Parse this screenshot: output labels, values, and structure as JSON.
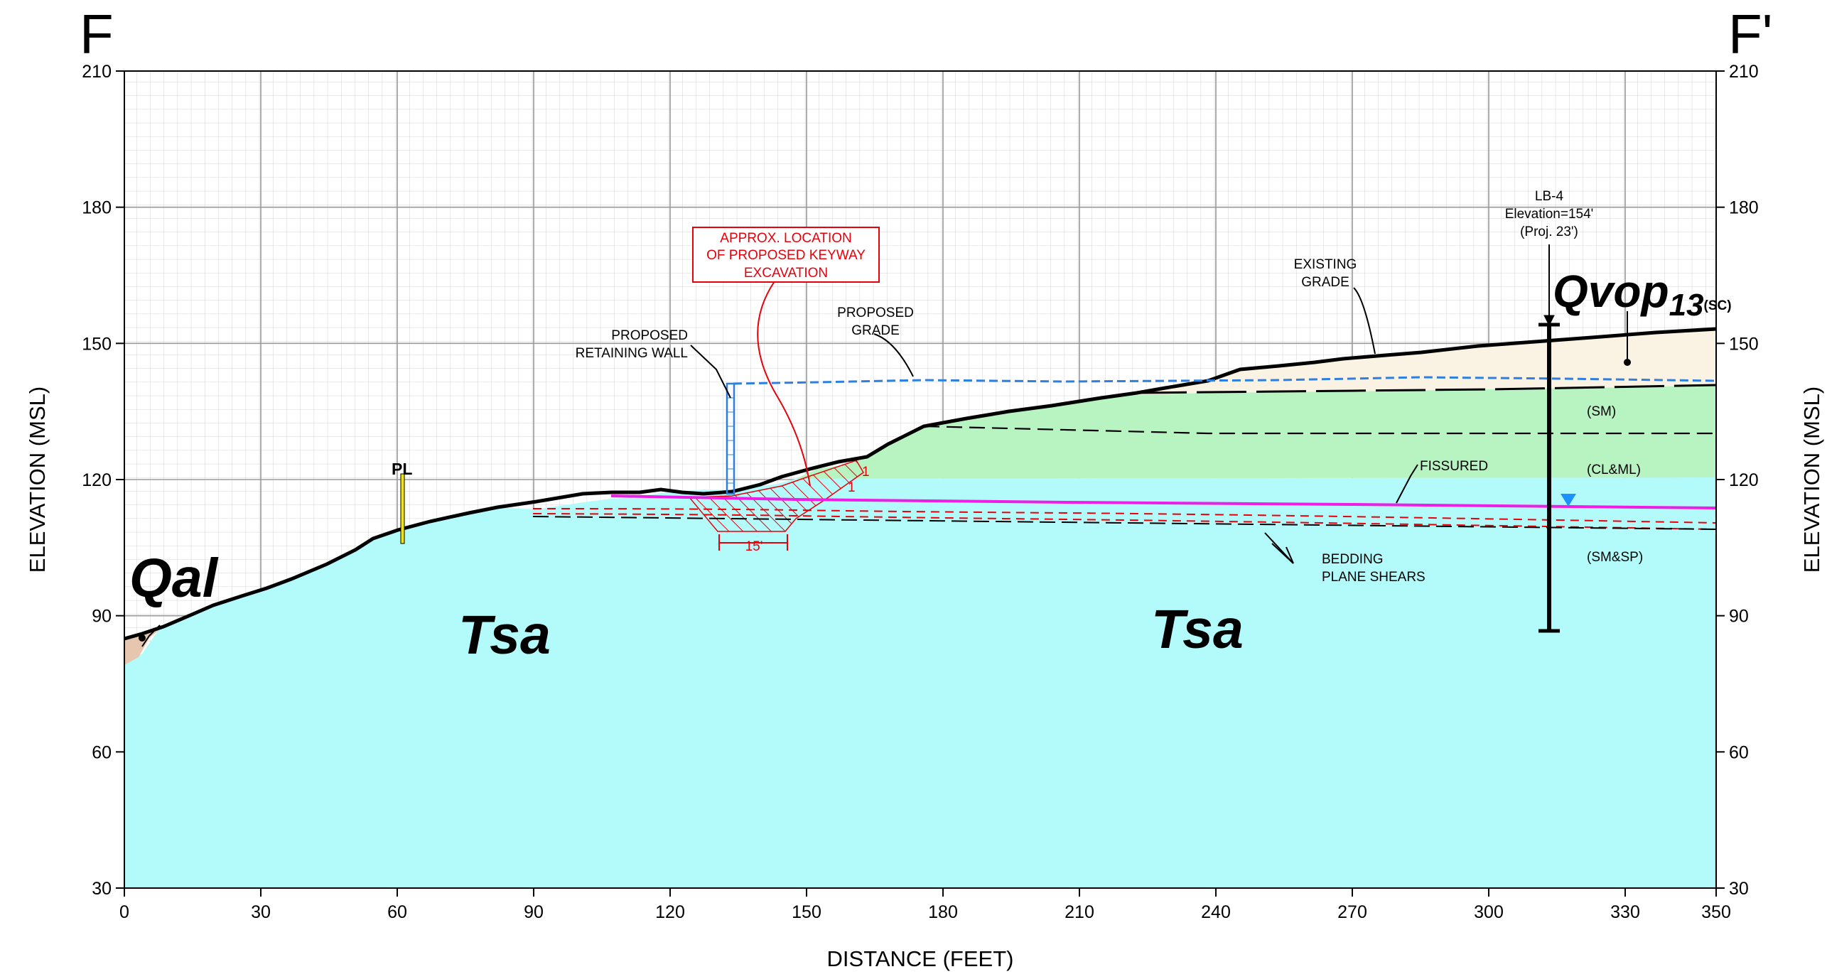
{
  "section": {
    "left_label": "F",
    "right_label": "F'",
    "x_axis_title": "DISTANCE (FEET)",
    "y_axis_title": "ELEVATION (MSL)",
    "x_ticks": [
      "0",
      "30",
      "60",
      "90",
      "120",
      "150",
      "180",
      "210",
      "240",
      "270",
      "300",
      "330",
      "350"
    ],
    "y_ticks": [
      "30",
      "60",
      "90",
      "120",
      "150",
      "180",
      "210"
    ]
  },
  "labels": {
    "qal": "Qal",
    "tsa_left": "Tsa",
    "tsa_right": "Tsa",
    "qvop_main": "Qvop",
    "qvop_sub": "13",
    "qvop_suffix": "(SC)",
    "pl": "PL",
    "sm": "(SM)",
    "clml": "(CL&ML)",
    "smsp": "(SM&SP)",
    "fissured": "FISSURED",
    "bedding_line1": "BEDDING",
    "bedding_line2": "PLANE SHEARS",
    "existing_grade_line1": "EXISTING",
    "existing_grade_line2": "GRADE",
    "proposed_grade_line1": "PROPOSED",
    "proposed_grade_line2": "GRADE",
    "retaining_wall_line1": "PROPOSED",
    "retaining_wall_line2": "RETAINING WALL",
    "keyway_line1": "APPROX. LOCATION",
    "keyway_line2": "OF PROPOSED KEYWAY",
    "keyway_line3": "EXCAVATION",
    "keyway_width": "15'",
    "slope_rise": "1",
    "slope_run": "1",
    "boring_line1": "LB-4",
    "boring_line2": "Elevation=154'",
    "boring_line3": "(Proj. 23')"
  },
  "colors": {
    "tsa_fill": "#b3fbfb",
    "clml_fill": "#b8f4c2",
    "qvop_fill": "#faf2e2",
    "qal_fill": "#e6c6ae",
    "proposed_grade": "#2f7fe0",
    "fissure": "#ee1ee6",
    "keyway": "#e8000b",
    "water_marker": "#1e90ff"
  }
}
